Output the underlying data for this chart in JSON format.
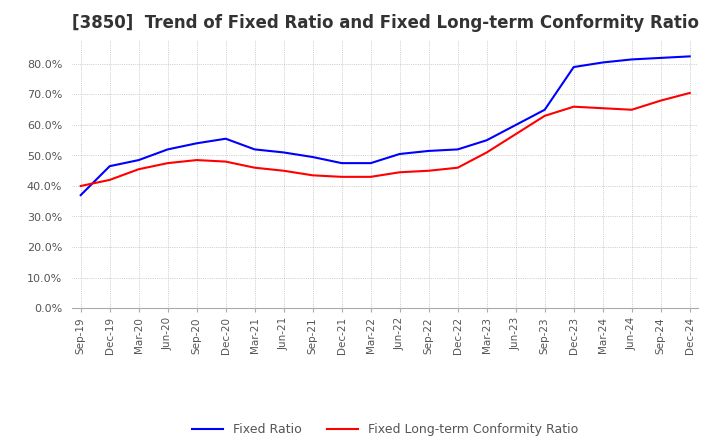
{
  "title": "[3850]  Trend of Fixed Ratio and Fixed Long-term Conformity Ratio",
  "title_fontsize": 12,
  "background_color": "#ffffff",
  "grid_color": "#aaaaaa",
  "x_labels": [
    "Sep-19",
    "Dec-19",
    "Mar-20",
    "Jun-20",
    "Sep-20",
    "Dec-20",
    "Mar-21",
    "Jun-21",
    "Sep-21",
    "Dec-21",
    "Mar-22",
    "Jun-22",
    "Sep-22",
    "Dec-22",
    "Mar-23",
    "Jun-23",
    "Sep-23",
    "Dec-23",
    "Mar-24",
    "Jun-24",
    "Sep-24",
    "Dec-24"
  ],
  "fixed_ratio": [
    37.0,
    46.5,
    48.5,
    52.0,
    54.0,
    55.5,
    52.0,
    51.0,
    49.5,
    47.5,
    47.5,
    50.5,
    51.5,
    52.0,
    55.0,
    60.0,
    65.0,
    79.0,
    80.5,
    81.5,
    82.0,
    82.5
  ],
  "fixed_lt_ratio": [
    40.0,
    42.0,
    45.5,
    47.5,
    48.5,
    48.0,
    46.0,
    45.0,
    43.5,
    43.0,
    43.0,
    44.5,
    45.0,
    46.0,
    51.0,
    57.0,
    63.0,
    66.0,
    65.5,
    65.0,
    68.0,
    70.5
  ],
  "fixed_ratio_color": "#0000ff",
  "fixed_lt_ratio_color": "#ff0000",
  "ylim": [
    0,
    88
  ],
  "yticks": [
    0,
    10,
    20,
    30,
    40,
    50,
    60,
    70,
    80
  ],
  "legend_fixed_ratio": "Fixed Ratio",
  "legend_fixed_lt_ratio": "Fixed Long-term Conformity Ratio"
}
